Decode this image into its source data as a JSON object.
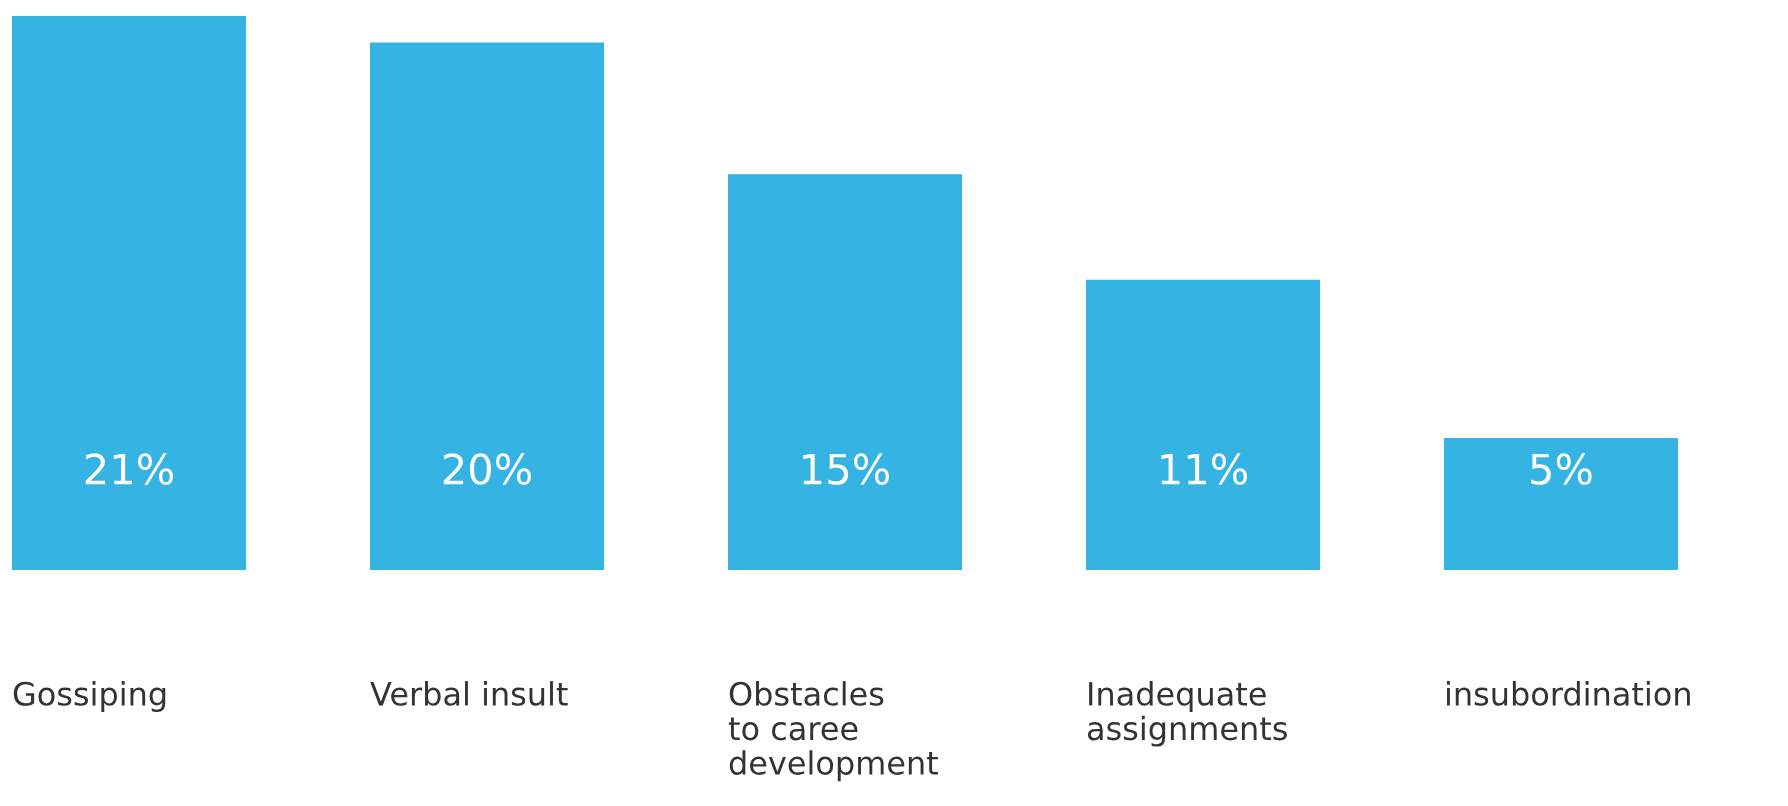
{
  "chart_data": {
    "type": "bar",
    "categories": [
      "Gossiping",
      "Verbal insult",
      "Obstacles\nto caree\ndevelopment",
      "Inadequate\nassignments",
      "insubordination"
    ],
    "values": [
      21,
      20,
      15,
      11,
      5
    ],
    "value_labels": [
      "21%",
      "20%",
      "15%",
      "11%",
      "5%"
    ],
    "color": "#35b3e3"
  }
}
